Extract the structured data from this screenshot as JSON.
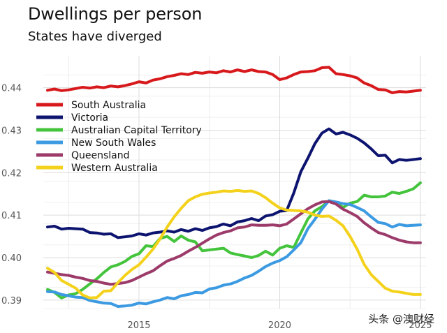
{
  "chart_data": {
    "type": "line",
    "title": "Dwellings per person",
    "subtitle": "States have diverged",
    "xlabel": "",
    "ylabel": "",
    "xlim": [
      2011.6,
      2025.2
    ],
    "ylim": [
      0.388,
      0.4475
    ],
    "x_ticks": [
      2015,
      2020,
      2025
    ],
    "y_ticks": [
      0.39,
      0.4,
      0.41,
      0.42,
      0.43,
      0.44
    ],
    "y_tick_labels": [
      "0.39",
      "0.40",
      "0.41",
      "0.42",
      "0.43",
      "0.44"
    ],
    "grid": true,
    "legend_position": "top-left",
    "series": [
      {
        "name": "South Australia",
        "color": "#d7191c",
        "x": [
          2011.75,
          2012,
          2012.25,
          2012.5,
          2012.75,
          2013,
          2013.25,
          2013.5,
          2013.75,
          2014,
          2014.25,
          2014.5,
          2014.75,
          2015,
          2015.25,
          2015.5,
          2015.75,
          2016,
          2016.25,
          2016.5,
          2016.75,
          2017,
          2017.25,
          2017.5,
          2017.75,
          2018,
          2018.25,
          2018.5,
          2018.75,
          2019,
          2019.25,
          2019.5,
          2019.75,
          2020,
          2020.25,
          2020.5,
          2020.75,
          2021,
          2021.25,
          2021.5,
          2021.75,
          2022,
          2022.25,
          2022.5,
          2022.75,
          2023,
          2023.25,
          2023.5,
          2023.75,
          2024,
          2024.25,
          2024.5,
          2024.75,
          2025
        ],
        "values": [
          0.4394,
          0.4397,
          0.4393,
          0.4395,
          0.4398,
          0.4401,
          0.4399,
          0.4402,
          0.44,
          0.4404,
          0.4402,
          0.4405,
          0.4409,
          0.4414,
          0.4411,
          0.4418,
          0.4421,
          0.4426,
          0.4429,
          0.4433,
          0.4431,
          0.4436,
          0.4434,
          0.4437,
          0.4435,
          0.444,
          0.4437,
          0.4442,
          0.4438,
          0.4442,
          0.4438,
          0.4437,
          0.4431,
          0.4419,
          0.4423,
          0.4431,
          0.4437,
          0.4438,
          0.444,
          0.4447,
          0.4448,
          0.4433,
          0.4431,
          0.4428,
          0.4423,
          0.4411,
          0.4405,
          0.4396,
          0.4395,
          0.4388,
          0.4391,
          0.439,
          0.4392,
          0.4394
        ]
      },
      {
        "name": "Victoria",
        "color": "#0d1470",
        "x": [
          2011.75,
          2012,
          2012.25,
          2012.5,
          2012.75,
          2013,
          2013.25,
          2013.5,
          2013.75,
          2014,
          2014.25,
          2014.5,
          2014.75,
          2015,
          2015.25,
          2015.5,
          2015.75,
          2016,
          2016.25,
          2016.5,
          2016.75,
          2017,
          2017.25,
          2017.5,
          2017.75,
          2018,
          2018.25,
          2018.5,
          2018.75,
          2019,
          2019.25,
          2019.5,
          2019.75,
          2020,
          2020.25,
          2020.5,
          2020.75,
          2021,
          2021.25,
          2021.5,
          2021.75,
          2022,
          2022.25,
          2022.5,
          2022.75,
          2023,
          2023.25,
          2023.5,
          2023.75,
          2024,
          2024.25,
          2024.5,
          2024.75,
          2025
        ],
        "values": [
          0.4072,
          0.4074,
          0.4067,
          0.4069,
          0.4068,
          0.4067,
          0.4059,
          0.4058,
          0.4055,
          0.4056,
          0.4047,
          0.4049,
          0.4051,
          0.4056,
          0.4053,
          0.4058,
          0.406,
          0.4063,
          0.406,
          0.4066,
          0.4062,
          0.4068,
          0.4064,
          0.407,
          0.4073,
          0.4079,
          0.4075,
          0.4084,
          0.4087,
          0.4092,
          0.4087,
          0.4098,
          0.4101,
          0.4109,
          0.4111,
          0.4152,
          0.4202,
          0.4234,
          0.4268,
          0.4293,
          0.4303,
          0.4291,
          0.4295,
          0.4289,
          0.4281,
          0.427,
          0.4256,
          0.424,
          0.4241,
          0.4223,
          0.4231,
          0.4229,
          0.4231,
          0.4233
        ]
      },
      {
        "name": "Australian Capital Territory",
        "color": "#44c43c",
        "x": [
          2011.75,
          2012,
          2012.25,
          2012.5,
          2012.75,
          2013,
          2013.25,
          2013.5,
          2013.75,
          2014,
          2014.25,
          2014.5,
          2014.75,
          2015,
          2015.25,
          2015.5,
          2015.75,
          2016,
          2016.25,
          2016.5,
          2016.75,
          2017,
          2017.25,
          2017.5,
          2017.75,
          2018,
          2018.25,
          2018.5,
          2018.75,
          2019,
          2019.25,
          2019.5,
          2019.75,
          2020,
          2020.25,
          2020.5,
          2020.75,
          2021,
          2021.25,
          2021.5,
          2021.75,
          2022,
          2022.25,
          2022.5,
          2022.75,
          2023,
          2023.25,
          2023.5,
          2023.75,
          2024,
          2024.25,
          2024.5,
          2024.75,
          2025
        ],
        "values": [
          0.3925,
          0.3918,
          0.3905,
          0.3912,
          0.3915,
          0.3925,
          0.3938,
          0.395,
          0.3965,
          0.3978,
          0.3983,
          0.3991,
          0.4003,
          0.4009,
          0.4028,
          0.4026,
          0.4045,
          0.405,
          0.4038,
          0.4051,
          0.4041,
          0.4037,
          0.4016,
          0.4018,
          0.402,
          0.4022,
          0.4011,
          0.4007,
          0.4004,
          0.4,
          0.4005,
          0.4015,
          0.4006,
          0.4022,
          0.4028,
          0.4024,
          0.4058,
          0.4091,
          0.411,
          0.412,
          0.4134,
          0.413,
          0.4118,
          0.4128,
          0.4132,
          0.4147,
          0.4143,
          0.4143,
          0.4145,
          0.4154,
          0.4151,
          0.4156,
          0.4162,
          0.4176
        ]
      },
      {
        "name": "New South Wales",
        "color": "#3b9ae1",
        "x": [
          2011.75,
          2012,
          2012.25,
          2012.5,
          2012.75,
          2013,
          2013.25,
          2013.5,
          2013.75,
          2014,
          2014.25,
          2014.5,
          2014.75,
          2015,
          2015.25,
          2015.5,
          2015.75,
          2016,
          2016.25,
          2016.5,
          2016.75,
          2017,
          2017.25,
          2017.5,
          2017.75,
          2018,
          2018.25,
          2018.5,
          2018.75,
          2019,
          2019.25,
          2019.5,
          2019.75,
          2020,
          2020.25,
          2020.5,
          2020.75,
          2021,
          2021.25,
          2021.5,
          2021.75,
          2022,
          2022.25,
          2022.5,
          2022.75,
          2023,
          2023.25,
          2023.5,
          2023.75,
          2024,
          2024.25,
          2024.5,
          2024.75,
          2025
        ],
        "values": [
          0.392,
          0.3919,
          0.3913,
          0.391,
          0.3907,
          0.3906,
          0.3899,
          0.3896,
          0.3893,
          0.3892,
          0.3885,
          0.3886,
          0.3888,
          0.3893,
          0.3891,
          0.3896,
          0.39,
          0.3906,
          0.3903,
          0.391,
          0.3913,
          0.3918,
          0.3917,
          0.3926,
          0.3929,
          0.3935,
          0.3938,
          0.3944,
          0.3952,
          0.3958,
          0.3968,
          0.3979,
          0.3987,
          0.3993,
          0.4002,
          0.4018,
          0.4035,
          0.4068,
          0.409,
          0.4114,
          0.4134,
          0.4131,
          0.4127,
          0.4125,
          0.4118,
          0.411,
          0.4096,
          0.4083,
          0.408,
          0.4072,
          0.4078,
          0.4075,
          0.4076,
          0.4077
        ]
      },
      {
        "name": "Queensland",
        "color": "#9c3b6a",
        "x": [
          2011.75,
          2012,
          2012.25,
          2012.5,
          2012.75,
          2013,
          2013.25,
          2013.5,
          2013.75,
          2014,
          2014.25,
          2014.5,
          2014.75,
          2015,
          2015.25,
          2015.5,
          2015.75,
          2016,
          2016.25,
          2016.5,
          2016.75,
          2017,
          2017.25,
          2017.5,
          2017.75,
          2018,
          2018.25,
          2018.5,
          2018.75,
          2019,
          2019.25,
          2019.5,
          2019.75,
          2020,
          2020.25,
          2020.5,
          2020.75,
          2021,
          2021.25,
          2021.5,
          2021.75,
          2022,
          2022.25,
          2022.5,
          2022.75,
          2023,
          2023.25,
          2023.5,
          2023.75,
          2024,
          2024.25,
          2024.5,
          2024.75,
          2025
        ],
        "values": [
          0.3966,
          0.3963,
          0.396,
          0.3958,
          0.3954,
          0.3951,
          0.3946,
          0.3944,
          0.394,
          0.3937,
          0.3939,
          0.3941,
          0.3946,
          0.3954,
          0.3962,
          0.3969,
          0.3981,
          0.3992,
          0.3998,
          0.4005,
          0.4015,
          0.4024,
          0.4034,
          0.4044,
          0.4053,
          0.4059,
          0.4063,
          0.407,
          0.4072,
          0.4077,
          0.4076,
          0.4076,
          0.4077,
          0.4075,
          0.4079,
          0.4091,
          0.4103,
          0.4115,
          0.4124,
          0.4131,
          0.4132,
          0.4126,
          0.4114,
          0.4106,
          0.4097,
          0.4082,
          0.407,
          0.4059,
          0.4054,
          0.4047,
          0.4041,
          0.4037,
          0.4035,
          0.4035
        ]
      },
      {
        "name": "Western Australia",
        "color": "#f4d21b",
        "x": [
          2011.75,
          2012,
          2012.25,
          2012.5,
          2012.75,
          2013,
          2013.25,
          2013.5,
          2013.75,
          2014,
          2014.25,
          2014.5,
          2014.75,
          2015,
          2015.25,
          2015.5,
          2015.75,
          2016,
          2016.25,
          2016.5,
          2016.75,
          2017,
          2017.25,
          2017.5,
          2017.75,
          2018,
          2018.25,
          2018.5,
          2018.75,
          2019,
          2019.25,
          2019.5,
          2019.75,
          2020,
          2020.25,
          2020.5,
          2020.75,
          2021,
          2021.25,
          2021.5,
          2021.75,
          2022,
          2022.25,
          2022.5,
          2022.75,
          2023,
          2023.25,
          2023.5,
          2023.75,
          2024,
          2024.25,
          2024.5,
          2024.75,
          2025
        ],
        "values": [
          0.3975,
          0.3965,
          0.3946,
          0.3937,
          0.3928,
          0.3912,
          0.3905,
          0.3906,
          0.3921,
          0.3922,
          0.3941,
          0.3958,
          0.3972,
          0.3983,
          0.4001,
          0.402,
          0.4044,
          0.4072,
          0.4096,
          0.4116,
          0.4134,
          0.4143,
          0.4149,
          0.4152,
          0.4154,
          0.4157,
          0.4156,
          0.4158,
          0.4156,
          0.4157,
          0.4151,
          0.4141,
          0.4128,
          0.4117,
          0.4112,
          0.4111,
          0.411,
          0.4107,
          0.41,
          0.4097,
          0.4098,
          0.4088,
          0.4075,
          0.405,
          0.402,
          0.3984,
          0.396,
          0.3944,
          0.3928,
          0.3921,
          0.3919,
          0.3916,
          0.3913,
          0.3913
        ]
      }
    ]
  },
  "watermark": "头条 @澳财经"
}
